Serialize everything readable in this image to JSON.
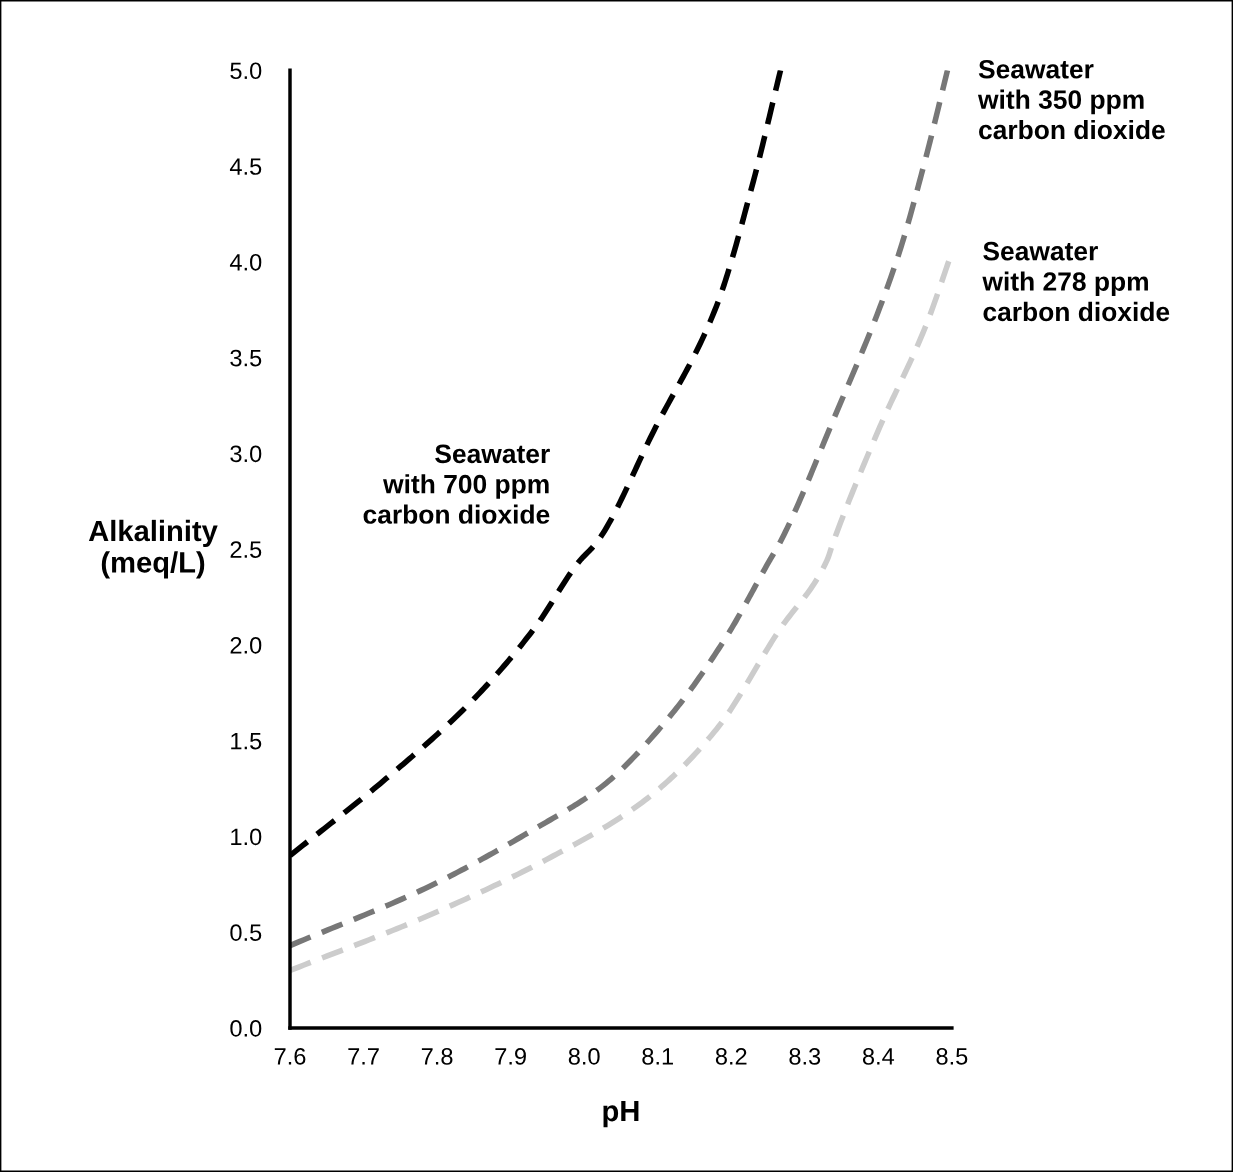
{
  "chart_data": {
    "type": "line",
    "xlabel": "pH",
    "ylabel": "Alkalinity\n(meq/L)",
    "xlim": [
      7.6,
      8.5
    ],
    "ylim": [
      0,
      5
    ],
    "xticks": [
      7.6,
      7.7,
      7.8,
      7.9,
      {
        "value": 8,
        "label": "8.0"
      },
      8.1,
      8.2,
      8.3,
      8.4,
      8.5
    ],
    "yticks": [
      {
        "value": 0,
        "label": "0.0"
      },
      0.5,
      {
        "value": 1,
        "label": "1.0"
      },
      1.5,
      {
        "value": 2,
        "label": "2.0"
      },
      2.5,
      {
        "value": 3,
        "label": "3.0"
      },
      3.5,
      {
        "value": 4,
        "label": "4.0"
      },
      4.5,
      {
        "value": 5,
        "label": "5.0"
      }
    ],
    "grid": false,
    "legend": false,
    "marker": "none",
    "line_style": "dashed",
    "series": [
      {
        "name": "Seawater\nwith 700 ppm\ncarbon dioxide",
        "color": "#000000",
        "x": [
          7.6,
          7.727,
          7.843,
          7.933,
          7.992,
          8.018,
          8.095,
          8.18,
          8.23,
          8.267
        ],
        "values": [
          0.9,
          1.29,
          1.69,
          2.09,
          2.43,
          2.54,
          3.12,
          3.77,
          4.42,
          5.0
        ]
      },
      {
        "name": "Seawater\nwith 350 ppm\ncarbon dioxide",
        "color": "#777777",
        "x": [
          7.6,
          7.79,
          7.933,
          8.024,
          8.115,
          8.193,
          8.252,
          8.267,
          8.335,
          8.426,
          8.465,
          8.494
        ],
        "values": [
          0.43,
          0.74,
          1.04,
          1.26,
          1.62,
          2.04,
          2.44,
          2.54,
          3.14,
          4.02,
          4.55,
          5.0
        ]
      },
      {
        "name": "Seawater\nwith 278 ppm\ncarbon dioxide",
        "color": "#cccccc",
        "x": [
          7.6,
          7.79,
          7.954,
          8.083,
          8.18,
          8.264,
          8.33,
          8.339,
          8.4,
          8.465,
          8.5
        ],
        "values": [
          0.3,
          0.59,
          0.89,
          1.19,
          1.56,
          2.07,
          2.44,
          2.54,
          3.12,
          3.67,
          4.05
        ]
      }
    ]
  }
}
